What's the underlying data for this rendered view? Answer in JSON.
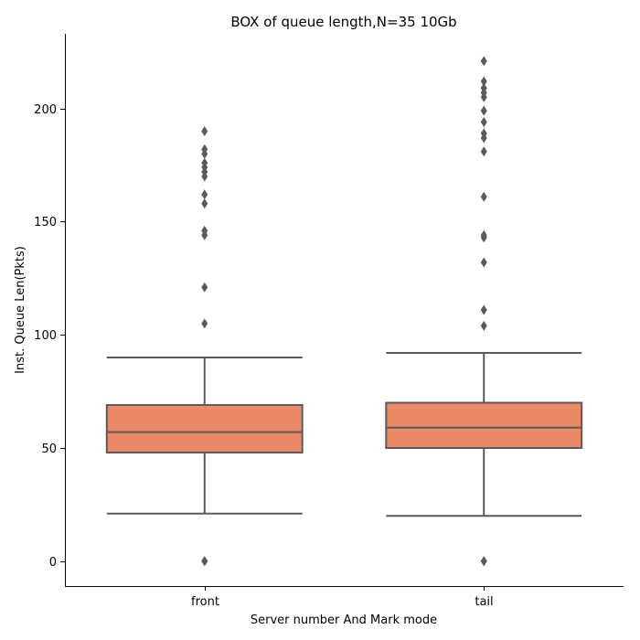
{
  "chart_data": {
    "type": "box",
    "title": "BOX of queue length,N=35 10Gb",
    "xlabel": "Server number And Mark mode",
    "ylabel": "Inst. Queue Len(Pkts)",
    "categories": [
      "front",
      "tail"
    ],
    "ylim": [
      -11,
      233
    ],
    "yticks": [
      0,
      50,
      100,
      150,
      200
    ],
    "grid": false,
    "box_color": "#ec8966",
    "line_color": "#5a5a5a",
    "boxes": [
      {
        "category": "front",
        "whisker_low": 21,
        "q1": 48,
        "median": 57,
        "q3": 69,
        "whisker_high": 90,
        "outliers": [
          0,
          0,
          105,
          121,
          144,
          146,
          158,
          162,
          170,
          172,
          174,
          176,
          180,
          182,
          190
        ]
      },
      {
        "category": "tail",
        "whisker_low": 20,
        "q1": 50,
        "median": 59,
        "q3": 70,
        "whisker_high": 92,
        "outliers": [
          0,
          0,
          104,
          111,
          132,
          143,
          144,
          161,
          181,
          187,
          189,
          194,
          199,
          205,
          207,
          209,
          212,
          221
        ]
      }
    ]
  }
}
